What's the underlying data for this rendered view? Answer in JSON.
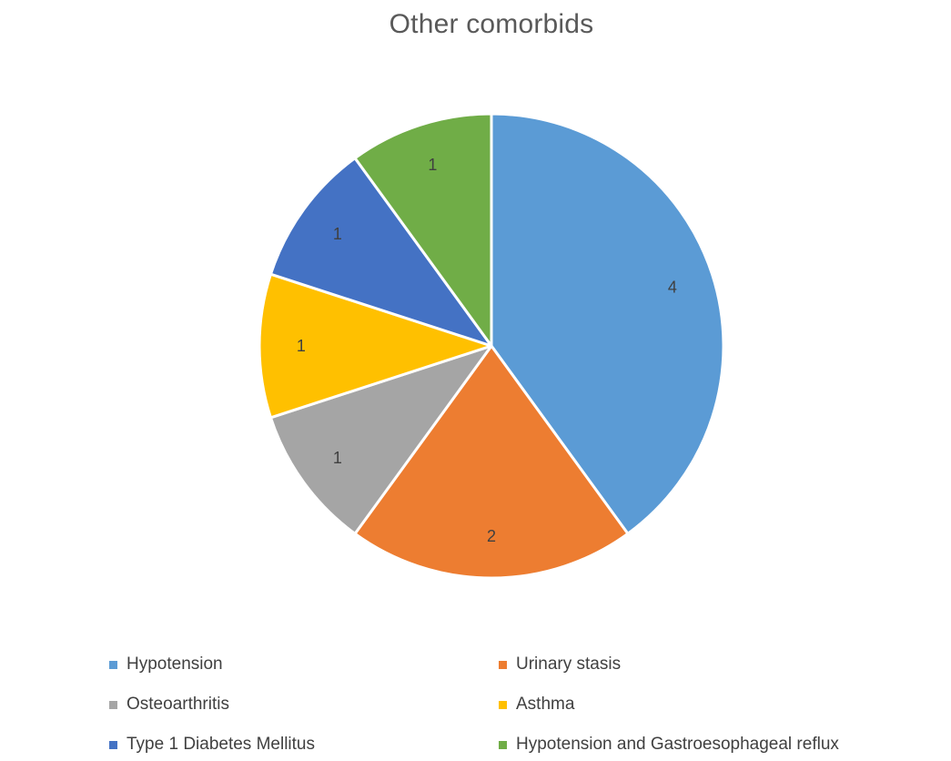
{
  "chart_data": {
    "type": "pie",
    "title": "Other comorbids",
    "legend_position": "bottom",
    "slices": [
      {
        "label": "Hypotension",
        "value": 4,
        "color": "#5b9bd5",
        "value_label": "4"
      },
      {
        "label": "Urinary stasis",
        "value": 2,
        "color": "#ed7d31",
        "value_label": "2"
      },
      {
        "label": "Osteoarthritis",
        "value": 1,
        "color": "#a5a5a5",
        "value_label": "1"
      },
      {
        "label": "Asthma",
        "value": 1,
        "color": "#ffc000",
        "value_label": "1"
      },
      {
        "label": "Type 1 Diabetes Mellitus",
        "value": 1,
        "color": "#4472c4",
        "value_label": "1"
      },
      {
        "label": "Hypotension and Gastroesophageal reflux",
        "value": 1,
        "color": "#70ad47",
        "value_label": "1"
      }
    ]
  }
}
